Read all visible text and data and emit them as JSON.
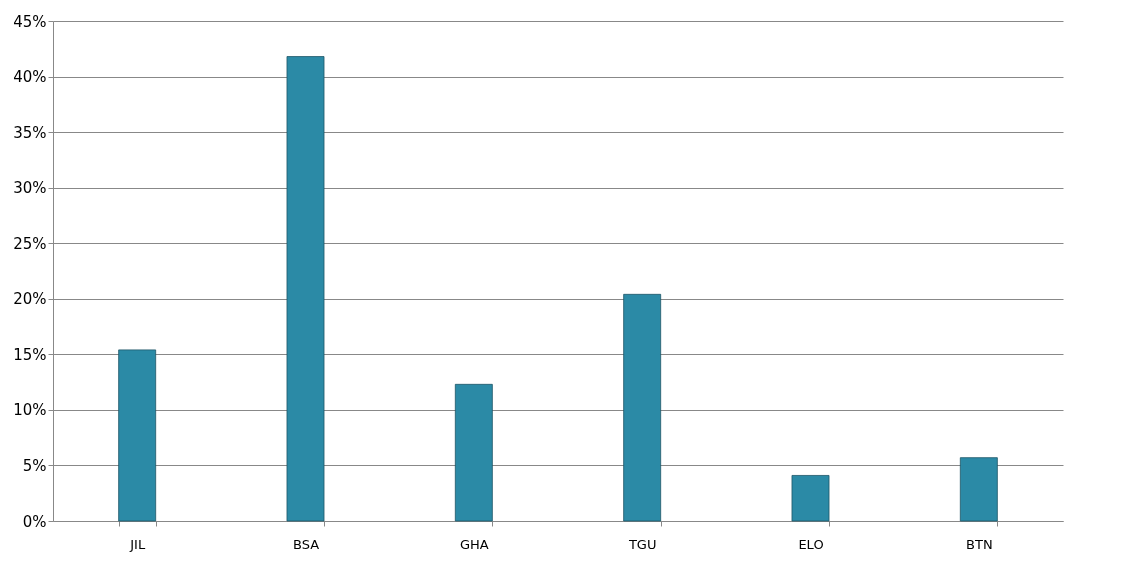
{
  "chart_data": {
    "type": "bar",
    "categories": [
      "JIL",
      "BSA",
      "GHA",
      "TGU",
      "ELO",
      "BTN"
    ],
    "values": [
      15.4,
      41.8,
      12.3,
      20.4,
      4.1,
      5.7
    ],
    "color": "#2b8aa6",
    "ylim": [
      0,
      45
    ],
    "yticks": [
      {
        "value": 0,
        "label": "0%"
      },
      {
        "value": 5,
        "label": "5%"
      },
      {
        "value": 10,
        "label": "10%"
      },
      {
        "value": 15,
        "label": "15%"
      },
      {
        "value": 20,
        "label": "20%"
      },
      {
        "value": 25,
        "label": "25%"
      },
      {
        "value": 30,
        "label": "30%"
      },
      {
        "value": 35,
        "label": "35%"
      },
      {
        "value": 40,
        "label": "40%"
      },
      {
        "value": 45,
        "label": "45%"
      }
    ],
    "grid": "y"
  }
}
